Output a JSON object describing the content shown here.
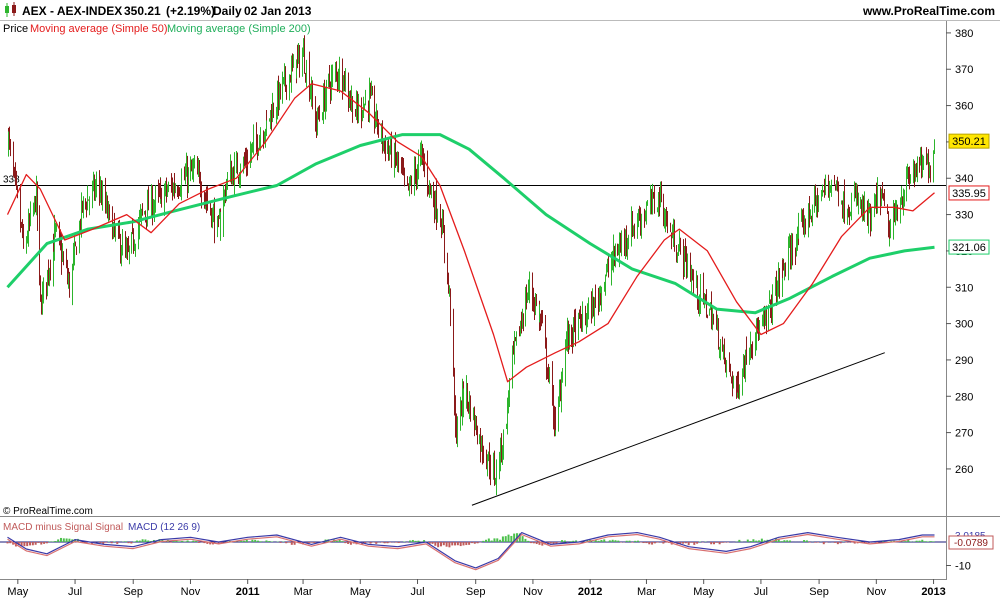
{
  "header": {
    "symbol": "AEX - AEX-INDEX",
    "price": "350.21",
    "change": "(+2.19%)",
    "period": "Daily",
    "date": "02 Jan 2013",
    "website": "www.ProRealTime.com"
  },
  "legend": {
    "price_label": "Price",
    "ma50_label": "Moving average (Simple 50)",
    "ma200_label": "Moving average (Simple 200)",
    "macd_hist_label": "MACD minus Signal Signal",
    "macd_label": "MACD (12 26 9)"
  },
  "copyright": "© ProRealTime.com",
  "colors": {
    "up_bar": "#2db52d",
    "down_bar": "#8b1a1a",
    "ma50": "#e41c1c",
    "ma200": "#1ecf6a",
    "macd_line": "#3a3aa8",
    "macd_signal": "#d97070",
    "hist_up": "#4cc04c",
    "hist_down": "#c05a5a",
    "price_badge": "#ffe600",
    "axis": "#555555"
  },
  "chart_data": [
    {
      "type": "candlestick",
      "title": "AEX - AEX-INDEX Daily",
      "x_axis_ticks": [
        "May",
        "Jul",
        "Sep",
        "Nov",
        "2011",
        "Mar",
        "May",
        "Jul",
        "Sep",
        "Nov",
        "2012",
        "Mar",
        "May",
        "Jul",
        "Sep",
        "Nov",
        "2013"
      ],
      "y_ticks": [
        260,
        270,
        280,
        290,
        300,
        310,
        320,
        330,
        340,
        350,
        360,
        370,
        380
      ],
      "ylim": [
        252,
        383
      ],
      "last_price": 350.21,
      "horizontal_line": {
        "value": 338,
        "label": "338"
      },
      "trendline": {
        "from_date": "2011-08-28",
        "from_value": 250.0,
        "to_date": "2012-11-10",
        "to_value": 292.0
      },
      "price_path": [
        [
          "2010-04-20",
          352
        ],
        [
          "2010-05-07",
          320
        ],
        [
          "2010-05-20",
          335
        ],
        [
          "2010-05-25",
          305
        ],
        [
          "2010-06-10",
          325
        ],
        [
          "2010-06-25",
          310
        ],
        [
          "2010-07-08",
          332
        ],
        [
          "2010-07-25",
          338
        ],
        [
          "2010-08-10",
          326
        ],
        [
          "2010-08-25",
          318
        ],
        [
          "2010-09-10",
          330
        ],
        [
          "2010-09-25",
          334
        ],
        [
          "2010-10-15",
          338
        ],
        [
          "2010-11-05",
          342
        ],
        [
          "2010-11-20",
          333
        ],
        [
          "2010-11-30",
          325
        ],
        [
          "2010-12-10",
          340
        ],
        [
          "2010-12-31",
          345
        ],
        [
          "2011-01-20",
          355
        ],
        [
          "2011-02-05",
          364
        ],
        [
          "2011-02-18",
          370
        ],
        [
          "2011-03-01",
          374
        ],
        [
          "2011-03-15",
          355
        ],
        [
          "2011-03-28",
          366
        ],
        [
          "2011-04-10",
          370
        ],
        [
          "2011-04-25",
          358
        ],
        [
          "2011-05-10",
          362
        ],
        [
          "2011-05-25",
          350
        ],
        [
          "2011-06-10",
          344
        ],
        [
          "2011-06-20",
          336
        ],
        [
          "2011-07-05",
          346
        ],
        [
          "2011-07-15",
          336
        ],
        [
          "2011-07-25",
          330
        ],
        [
          "2011-08-05",
          305
        ],
        [
          "2011-08-10",
          270
        ],
        [
          "2011-08-20",
          282
        ],
        [
          "2011-09-05",
          268
        ],
        [
          "2011-09-15",
          262
        ],
        [
          "2011-09-22",
          258
        ],
        [
          "2011-10-01",
          270
        ],
        [
          "2011-10-10",
          290
        ],
        [
          "2011-10-20",
          302
        ],
        [
          "2011-10-28",
          310
        ],
        [
          "2011-11-10",
          300
        ],
        [
          "2011-11-25",
          270
        ],
        [
          "2011-12-05",
          295
        ],
        [
          "2011-12-20",
          300
        ],
        [
          "2012-01-05",
          305
        ],
        [
          "2012-01-25",
          318
        ],
        [
          "2012-02-10",
          325
        ],
        [
          "2012-02-25",
          330
        ],
        [
          "2012-03-15",
          335
        ],
        [
          "2012-03-25",
          325
        ],
        [
          "2012-04-10",
          318
        ],
        [
          "2012-04-25",
          308
        ],
        [
          "2012-05-10",
          302
        ],
        [
          "2012-05-25",
          288
        ],
        [
          "2012-06-05",
          282
        ],
        [
          "2012-06-20",
          296
        ],
        [
          "2012-07-05",
          300
        ],
        [
          "2012-07-20",
          312
        ],
        [
          "2012-08-05",
          322
        ],
        [
          "2012-08-20",
          330
        ],
        [
          "2012-09-05",
          336
        ],
        [
          "2012-09-15",
          340
        ],
        [
          "2012-09-28",
          332
        ],
        [
          "2012-10-10",
          334
        ],
        [
          "2012-10-25",
          328
        ],
        [
          "2012-11-05",
          336
        ],
        [
          "2012-11-15",
          324
        ],
        [
          "2012-11-25",
          334
        ],
        [
          "2012-12-10",
          342
        ],
        [
          "2012-12-28",
          344
        ],
        [
          "2013-01-02",
          350
        ]
      ],
      "ma50_path": [
        [
          "2010-04-20",
          330
        ],
        [
          "2010-05-10",
          341
        ],
        [
          "2010-05-25",
          337
        ],
        [
          "2010-06-20",
          323
        ],
        [
          "2010-07-20",
          326
        ],
        [
          "2010-08-25",
          330
        ],
        [
          "2010-09-20",
          325
        ],
        [
          "2010-10-20",
          333
        ],
        [
          "2010-11-20",
          337
        ],
        [
          "2010-12-20",
          340
        ],
        [
          "2011-01-20",
          350
        ],
        [
          "2011-02-20",
          362
        ],
        [
          "2011-03-10",
          366
        ],
        [
          "2011-04-10",
          364
        ],
        [
          "2011-05-10",
          358
        ],
        [
          "2011-06-10",
          350
        ],
        [
          "2011-07-05",
          346
        ],
        [
          "2011-07-25",
          338
        ],
        [
          "2011-08-20",
          320
        ],
        [
          "2011-09-20",
          297
        ],
        [
          "2011-10-05",
          284
        ],
        [
          "2011-10-25",
          288
        ],
        [
          "2011-11-25",
          292
        ],
        [
          "2011-12-20",
          295
        ],
        [
          "2012-01-20",
          300
        ],
        [
          "2012-02-20",
          313
        ],
        [
          "2012-03-20",
          323
        ],
        [
          "2012-04-05",
          326
        ],
        [
          "2012-05-05",
          320
        ],
        [
          "2012-06-05",
          306
        ],
        [
          "2012-07-01",
          297
        ],
        [
          "2012-07-25",
          300
        ],
        [
          "2012-08-25",
          311
        ],
        [
          "2012-09-25",
          324
        ],
        [
          "2012-10-25",
          332
        ],
        [
          "2012-11-20",
          332
        ],
        [
          "2012-12-10",
          331
        ],
        [
          "2013-01-02",
          336
        ]
      ],
      "ma200_path": [
        [
          "2010-04-20",
          310
        ],
        [
          "2010-06-01",
          322
        ],
        [
          "2010-07-15",
          326
        ],
        [
          "2010-09-01",
          328
        ],
        [
          "2010-10-15",
          331
        ],
        [
          "2010-12-15",
          335
        ],
        [
          "2011-02-01",
          338
        ],
        [
          "2011-03-15",
          344
        ],
        [
          "2011-05-01",
          349
        ],
        [
          "2011-06-15",
          352
        ],
        [
          "2011-07-25",
          352
        ],
        [
          "2011-08-25",
          348
        ],
        [
          "2011-10-01",
          340
        ],
        [
          "2011-11-15",
          330
        ],
        [
          "2012-01-01",
          322
        ],
        [
          "2012-02-15",
          315
        ],
        [
          "2012-04-01",
          311
        ],
        [
          "2012-05-15",
          304
        ],
        [
          "2012-06-25",
          303
        ],
        [
          "2012-08-01",
          307
        ],
        [
          "2012-09-15",
          313
        ],
        [
          "2012-10-25",
          318
        ],
        [
          "2012-12-01",
          320
        ],
        [
          "2013-01-02",
          321
        ]
      ],
      "last_values": {
        "price": 350.21,
        "ma50": 335.95,
        "ma200": 321.06
      }
    },
    {
      "type": "line",
      "title": "MACD (12 26 9)",
      "y_ticks": [
        -10
      ],
      "last_values": {
        "macd": 3.0185,
        "hist": -0.0789
      },
      "macd_path": [
        [
          "2010-04-20",
          2
        ],
        [
          "2010-05-10",
          -3
        ],
        [
          "2010-06-01",
          -5
        ],
        [
          "2010-07-01",
          1
        ],
        [
          "2010-08-01",
          -1
        ],
        [
          "2010-09-01",
          -2
        ],
        [
          "2010-10-01",
          1
        ],
        [
          "2010-11-01",
          2
        ],
        [
          "2010-12-01",
          0
        ],
        [
          "2011-01-01",
          2
        ],
        [
          "2011-02-01",
          3
        ],
        [
          "2011-03-10",
          -1
        ],
        [
          "2011-04-10",
          2
        ],
        [
          "2011-05-10",
          -1
        ],
        [
          "2011-06-10",
          -2
        ],
        [
          "2011-07-10",
          0
        ],
        [
          "2011-08-10",
          -8
        ],
        [
          "2011-09-01",
          -11
        ],
        [
          "2011-09-25",
          -7
        ],
        [
          "2011-10-20",
          4
        ],
        [
          "2011-11-20",
          -1
        ],
        [
          "2011-12-20",
          0
        ],
        [
          "2012-01-20",
          3
        ],
        [
          "2012-02-20",
          4
        ],
        [
          "2012-03-15",
          2
        ],
        [
          "2012-04-15",
          -2
        ],
        [
          "2012-05-25",
          -4
        ],
        [
          "2012-06-20",
          -2
        ],
        [
          "2012-07-20",
          2
        ],
        [
          "2012-08-20",
          4
        ],
        [
          "2012-09-20",
          2
        ],
        [
          "2012-10-25",
          0
        ],
        [
          "2012-11-25",
          1
        ],
        [
          "2012-12-20",
          3
        ],
        [
          "2013-01-02",
          3
        ]
      ]
    }
  ]
}
